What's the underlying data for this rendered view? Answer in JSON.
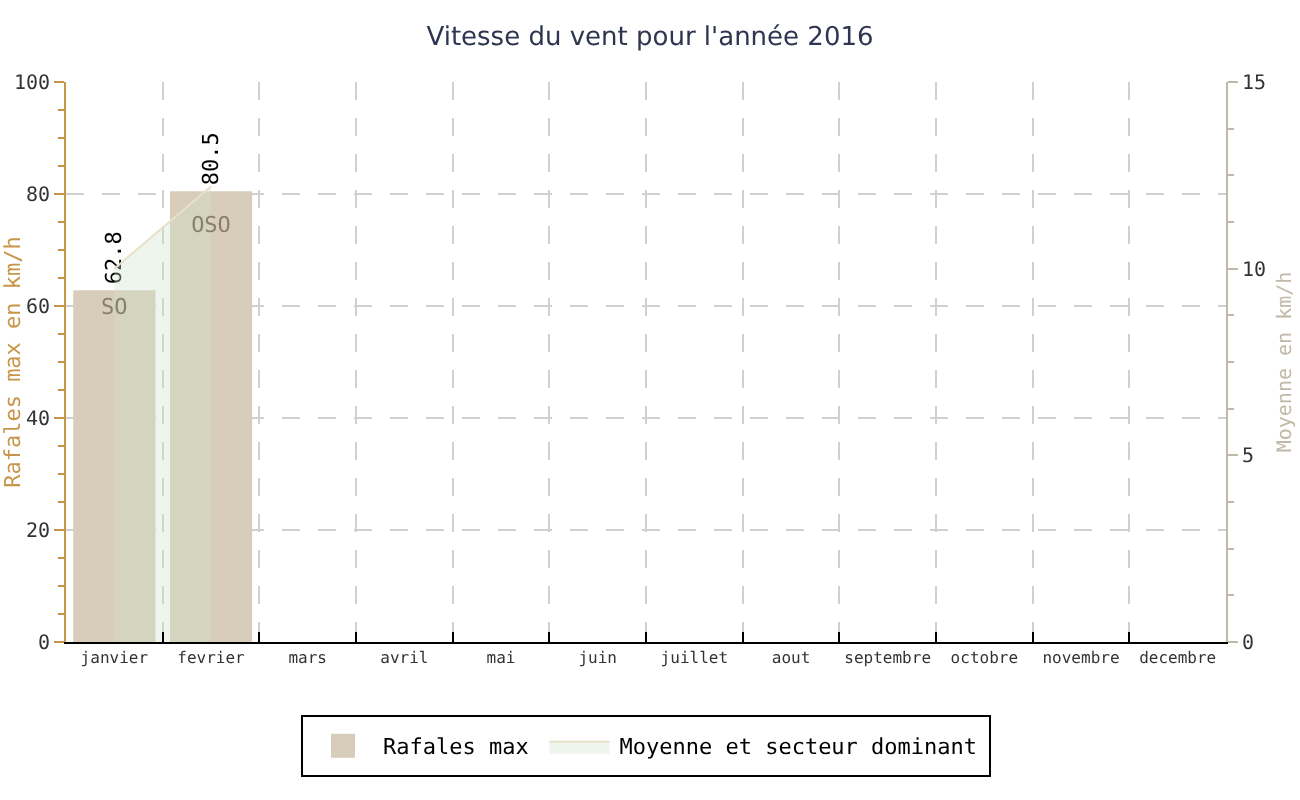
{
  "chart_data": {
    "type": "bar",
    "title": "Vitesse du vent pour l'année 2016",
    "categories": [
      "janvier",
      "fevrier",
      "mars",
      "avril",
      "mai",
      "juin",
      "juillet",
      "aout",
      "septembre",
      "octobre",
      "novembre",
      "decembre"
    ],
    "series": [
      {
        "name": "Rafales max",
        "color": "#d8cdbb",
        "values": [
          62.8,
          80.5,
          null,
          null,
          null,
          null,
          null,
          null,
          null,
          null,
          null,
          null
        ],
        "value_labels": [
          "62.8",
          "80.5",
          null,
          null,
          null,
          null,
          null,
          null,
          null,
          null,
          null,
          null
        ]
      },
      {
        "name": "Moyenne et secteur dominant",
        "type": "area",
        "axis": "y2",
        "color": "#e8e0c8",
        "values": [
          10.0,
          12.2,
          null,
          null,
          null,
          null,
          null,
          null,
          null,
          null,
          null,
          null
        ],
        "value_labels": [
          "SO",
          "OSO",
          null,
          null,
          null,
          null,
          null,
          null,
          null,
          null,
          null,
          null
        ]
      }
    ],
    "ylabel": "Rafales max en km/h",
    "y2label": "Moyenne en km/h",
    "ylim": [
      0,
      100
    ],
    "yticks": [
      0,
      20,
      40,
      60,
      80,
      100
    ],
    "y2lim": [
      0,
      15
    ],
    "y2ticks": [
      0,
      5,
      10,
      15
    ],
    "grid": true,
    "legend": "bottom"
  }
}
